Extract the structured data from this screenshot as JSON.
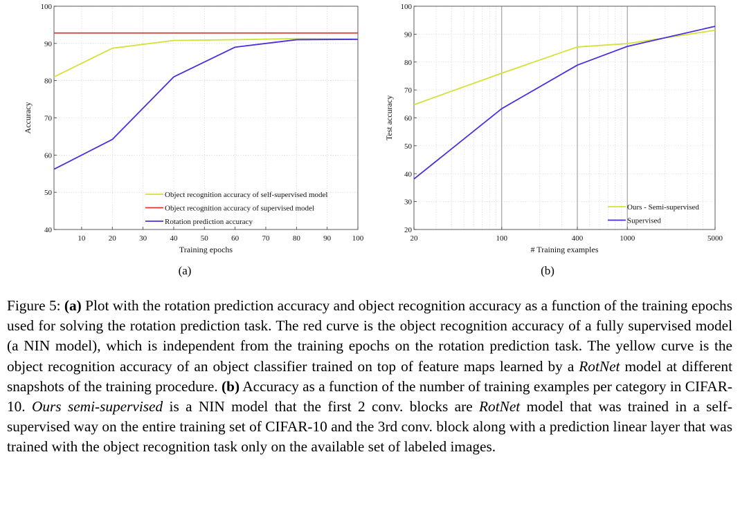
{
  "chart_data": [
    {
      "type": "line",
      "xlabel": "Training epochs",
      "ylabel": "Accuracy",
      "xlim": [
        1,
        100
      ],
      "ylim": [
        40,
        100
      ],
      "xticks": [
        10,
        20,
        30,
        40,
        50,
        60,
        70,
        80,
        90,
        100
      ],
      "yticks": [
        40,
        50,
        60,
        70,
        80,
        90,
        100
      ],
      "grid": true,
      "legend": "bottom-right",
      "sublabel": "(a)",
      "series": [
        {
          "name": "Object recognition accuracy of self-supervised model",
          "color": "#d6e03a",
          "x": [
            1,
            20,
            40,
            60,
            80,
            100
          ],
          "y": [
            81,
            88.7,
            90.8,
            91,
            91.3,
            91.2
          ]
        },
        {
          "name": "Object recognition accuracy of supervised model",
          "color": "#e8332a",
          "x": [
            1,
            100
          ],
          "y": [
            92.8,
            92.8
          ]
        },
        {
          "name": "Rotation prediction accuracy",
          "color": "#4b2de0",
          "x": [
            1,
            20,
            40,
            60,
            80,
            100
          ],
          "y": [
            56.2,
            64.2,
            81,
            89,
            91,
            91.1
          ]
        }
      ]
    },
    {
      "type": "line",
      "xscale": "log",
      "xlabel": "# Training examples",
      "ylabel": "Test accuracy",
      "xlim": [
        20,
        5000
      ],
      "ylim": [
        20,
        100
      ],
      "xticks": [
        20,
        100,
        400,
        1000,
        5000
      ],
      "yticks": [
        20,
        30,
        40,
        50,
        60,
        70,
        80,
        90,
        100
      ],
      "grid": true,
      "legend": "bottom-right",
      "sublabel": "(b)",
      "series": [
        {
          "name": "Ours - Semi-supervised",
          "color": "#d6e03a",
          "x": [
            20,
            100,
            400,
            1000,
            5000
          ],
          "y": [
            64.7,
            76,
            85.4,
            86.6,
            91.4
          ]
        },
        {
          "name": "Supervised",
          "color": "#4b2de0",
          "x": [
            20,
            100,
            400,
            1000,
            5000
          ],
          "y": [
            38.1,
            63.3,
            78.9,
            85.6,
            92.8
          ]
        }
      ]
    }
  ],
  "caption": {
    "label": "Figure 5:",
    "a_marker": "(a)",
    "a_text": "Plot with the rotation prediction accuracy and object recognition accuracy as a function of the training epochs used for solving the rotation prediction task. The red curve is the object recognition accuracy of a fully supervised model (a NIN model), which is independent from the training epochs on the rotation prediction task. The yellow curve is the object recognition accuracy of an object classifier trained on top of feature maps learned by a",
    "rotnet1": "RotNet",
    "a_text2": "model at different snapshots of the training procedure.",
    "b_marker": "(b)",
    "b_text": "Accuracy as a function of the number of training examples per category in CIFAR-10.",
    "ours_semi": "Ours semi-supervised",
    "b_text2": "is a NIN model that the first 2 conv. blocks are",
    "rotnet2": "RotNet",
    "b_text3": "model that was trained in a self-supervised way on the entire training set of CIFAR-10 and the 3rd conv. block along with a prediction linear layer that was trained with the object recognition task only on the available set of labeled images."
  }
}
